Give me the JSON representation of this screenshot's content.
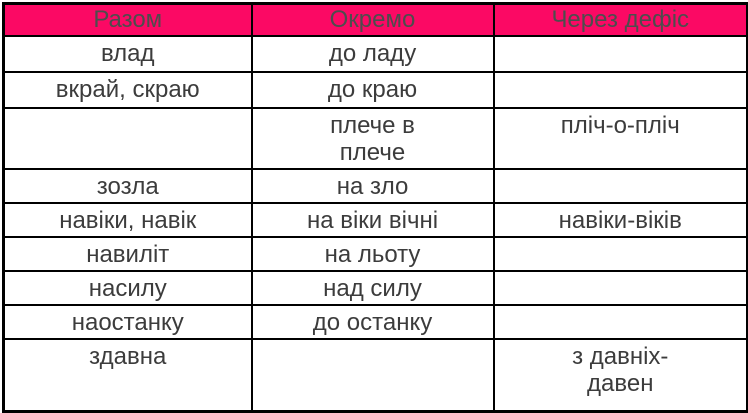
{
  "colors": {
    "header_bg": "#FB0964",
    "header_text": "#4D4D4D",
    "body_text": "#3C3C3C",
    "border": "#000000",
    "background": "#FFFFFF"
  },
  "chart_data": {
    "type": "table",
    "columns": [
      "Разом",
      "Окремо",
      "Через дефіс"
    ],
    "rows": [
      [
        "влад",
        "до ладу",
        ""
      ],
      [
        "вкрай, скраю",
        "до краю",
        ""
      ],
      [
        "",
        "плече в\nплече",
        "пліч-о-пліч"
      ],
      [
        "зозла",
        "на зло",
        ""
      ],
      [
        "навіки, навік",
        "на віки вічні",
        "навіки-віків"
      ],
      [
        "навиліт",
        "на льоту",
        ""
      ],
      [
        "насилу",
        "над силу",
        ""
      ],
      [
        "наостанку",
        "до останку",
        ""
      ],
      [
        "здавна",
        "",
        "з давніх-\nдавен"
      ]
    ]
  }
}
